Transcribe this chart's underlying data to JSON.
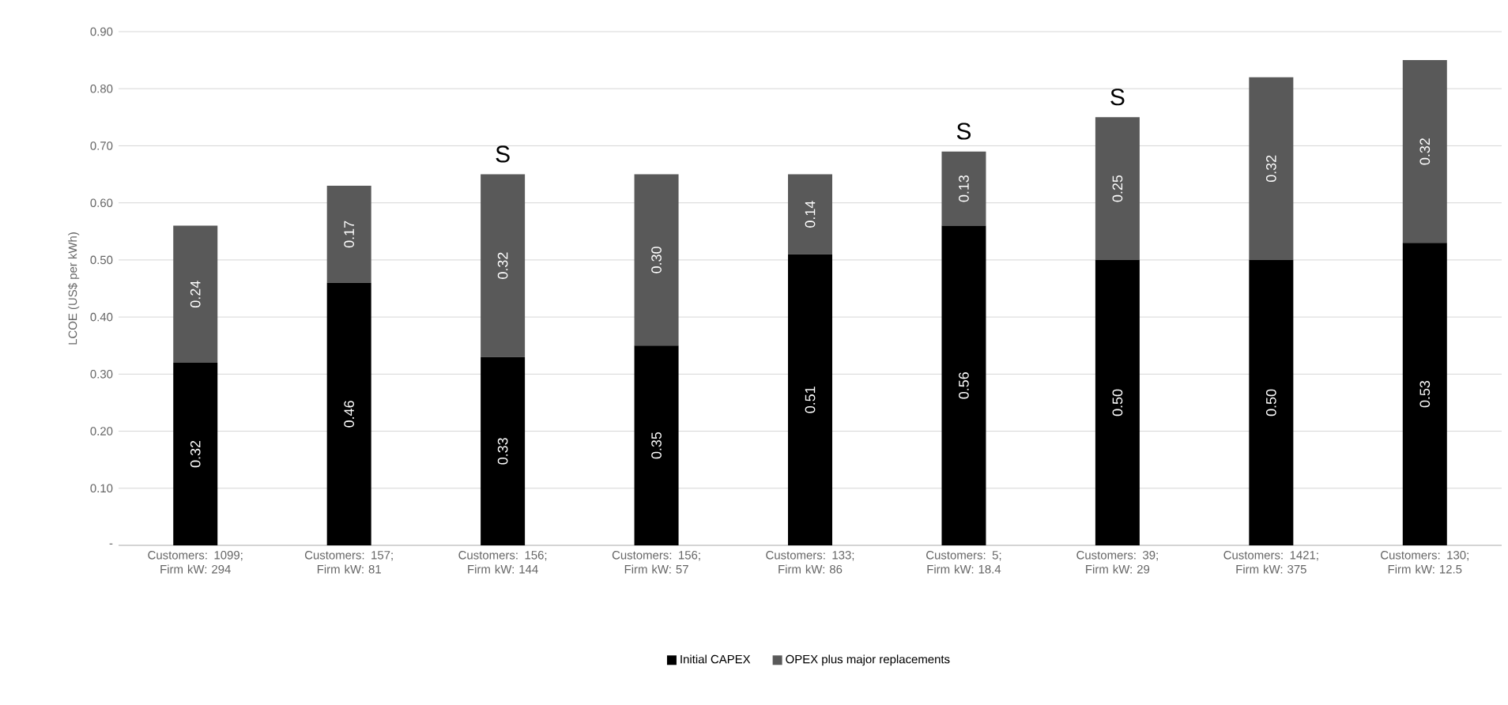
{
  "chart_data": {
    "type": "bar",
    "stacked": true,
    "ylabel": "LCOE (US$ per kWh)",
    "categories": [
      "Customers: 1099; Firm kW: 294",
      "Customers: 157; Firm kW: 81",
      "Customers: 156; Firm kW: 144",
      "Customers: 156; Firm kW: 57",
      "Customers: 133; Firm kW: 86",
      "Customers: 5; Firm kW: 18.4",
      "Customers: 39; Firm kW: 29",
      "Customers: 1421; Firm kW: 375",
      "Customers: 130; Firm kW: 12.5"
    ],
    "series": [
      {
        "name": "Initial CAPEX",
        "color": "#000000",
        "values": [
          0.32,
          0.46,
          0.33,
          0.35,
          0.51,
          0.56,
          0.5,
          0.5,
          0.53
        ],
        "value_labels": [
          "0.32",
          "0.46",
          "0.33",
          "0.35",
          "0.51",
          "0.56",
          "0.50",
          "0.50",
          "0.53"
        ]
      },
      {
        "name": "OPEX plus major replacements",
        "color": "#595959",
        "values": [
          0.24,
          0.17,
          0.32,
          0.3,
          0.14,
          0.13,
          0.25,
          0.32,
          0.32
        ],
        "value_labels": [
          "0.24",
          "0.17",
          "0.32",
          "0.30",
          "0.14",
          "0.13",
          "0.25",
          "0.32",
          "0.32"
        ]
      }
    ],
    "ylim": [
      0,
      0.9
    ],
    "yticks": [
      {
        "value": 0,
        "label": "-"
      },
      {
        "value": 0.1,
        "label": "0.10"
      },
      {
        "value": 0.2,
        "label": "0.20"
      },
      {
        "value": 0.3,
        "label": "0.30"
      },
      {
        "value": 0.4,
        "label": "0.40"
      },
      {
        "value": 0.5,
        "label": "0.50"
      },
      {
        "value": 0.6,
        "label": "0.60"
      },
      {
        "value": 0.7,
        "label": "0.70"
      },
      {
        "value": 0.8,
        "label": "0.80"
      },
      {
        "value": 0.9,
        "label": "0.90"
      }
    ],
    "annotations": [
      {
        "text": "S",
        "x": "Customers: 156; Firm kW: 144",
        "y": 0.65
      },
      {
        "text": "S",
        "x": "Customers: 5; Firm kW: 18.4",
        "y": 0.69
      },
      {
        "text": "S",
        "x": "Customers: 39; Firm kW: 29",
        "y": 0.75
      }
    ],
    "grid": "y",
    "legend": "bottom"
  }
}
